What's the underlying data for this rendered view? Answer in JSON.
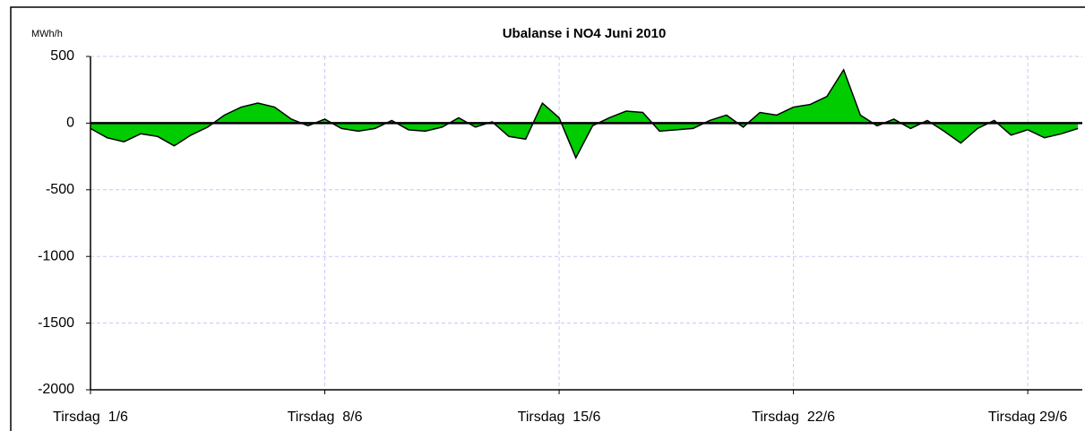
{
  "chart_data": {
    "type": "area",
    "title": "Ubalanse i NO4 Juni 2010",
    "y_label": "MWh/h",
    "color": "#00cc00",
    "line_color": "#000000",
    "grid": true,
    "x": [
      0,
      0.5,
      1,
      1.5,
      2,
      2.5,
      3,
      3.5,
      4,
      4.5,
      5,
      5.5,
      6,
      6.5,
      7,
      7.5,
      8,
      8.5,
      9,
      9.5,
      10,
      10.5,
      11,
      11.5,
      12,
      12.5,
      13,
      13.5,
      14,
      14.5,
      15,
      15.5,
      16,
      16.5,
      17,
      17.5,
      18,
      18.5,
      19,
      19.5,
      20,
      20.5,
      21,
      21.5,
      22,
      22.5,
      23,
      23.5,
      24,
      24.5,
      25,
      25.5,
      26,
      26.5,
      27,
      27.5,
      28,
      28.5,
      29,
      29.5
    ],
    "values": [
      -40,
      -110,
      -140,
      -80,
      -100,
      -170,
      -90,
      -30,
      60,
      120,
      150,
      120,
      30,
      -20,
      30,
      -40,
      -60,
      -40,
      20,
      -50,
      -60,
      -30,
      40,
      -30,
      10,
      -100,
      -120,
      150,
      40,
      -260,
      -20,
      40,
      90,
      80,
      -60,
      -50,
      -40,
      20,
      60,
      -30,
      80,
      60,
      120,
      140,
      200,
      400,
      60,
      -20,
      30,
      -40,
      20,
      -60,
      -150,
      -40,
      20,
      -90,
      -50,
      -110,
      -80,
      -40
    ],
    "xlim": [
      0,
      29.63
    ],
    "xticks": [
      {
        "value": 0,
        "label": "Tirsdag  1/6"
      },
      {
        "value": 7,
        "label": "Tirsdag  8/6"
      },
      {
        "value": 14,
        "label": "Tirsdag  15/6"
      },
      {
        "value": 21,
        "label": "Tirsdag  22/6"
      },
      {
        "value": 28,
        "label": "Tirsdag 29/6"
      }
    ],
    "ylim": [
      -2000,
      500
    ],
    "yticks": [
      -2000,
      -1500,
      -1000,
      -500,
      0,
      500
    ]
  }
}
